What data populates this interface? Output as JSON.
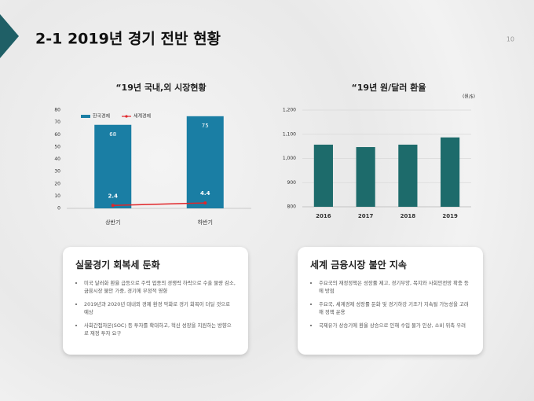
{
  "header": {
    "title": "2-1 2019년 경기 전반 현황",
    "page": "10"
  },
  "chart_data": [
    {
      "type": "bar",
      "title": "“19년 국내,외 시장현황",
      "categories": [
        "상반기",
        "하반기"
      ],
      "series": [
        {
          "name": "한국경제",
          "type": "bar",
          "color": "#1a7ea4",
          "values": [
            68,
            75
          ]
        },
        {
          "name": "세계경제",
          "type": "line",
          "color": "#e0262a",
          "values": [
            2.4,
            4.4
          ]
        }
      ],
      "ylim": [
        0,
        80
      ],
      "yticks": [
        0,
        10,
        20,
        30,
        40,
        50,
        60,
        70,
        80
      ],
      "grid": false,
      "legend": "top-left",
      "data_labels": true
    },
    {
      "type": "bar",
      "title": "“19년 원/달러 환율",
      "y_unit": "(원/$)",
      "categories": [
        "2016",
        "2017",
        "2018",
        "2019"
      ],
      "values": [
        1057,
        1047,
        1057,
        1087
      ],
      "color": "#1d6b6b",
      "ylim": [
        800,
        1200
      ],
      "yticks": [
        800,
        900,
        {
          "value": 1000,
          "label": "1,000"
        },
        {
          "value": 1100,
          "label": "1,100"
        },
        {
          "value": 1200,
          "label": "1,200"
        }
      ],
      "grid": true
    }
  ],
  "cards": [
    {
      "title": "실물경기 회복세 둔화",
      "bullets": [
        "미국 달러화 환율 급등으로 주력 업종의 경쟁력 하락으로 수출 물량 감소, 금융시장 불안 가중, 경기에 부정적 영향",
        "2019년과 2020년 대내외 경제 환경 악화로 경기 회복이 더딜 것으로 예상",
        "사회간접자본(SOC) 등 투자를 확대하고, 혁신 성장을 지원하는 방향으로 재정 투자 요구"
      ]
    },
    {
      "title": "세계 금융시장 불안 지속",
      "bullets": [
        "주요국의 재정정책은 성장률 제고, 경기부양, 복지와 사회안전망 확충 등에 방점",
        "주요국, 세계경제 성장률 둔화 및 경기하강 기조가 지속될 가능성을 고려해 정책 운용",
        "국제유가 상승기에 환율 상승으로 인해 수입 물가 인상, 소비 위축 우려"
      ]
    }
  ]
}
